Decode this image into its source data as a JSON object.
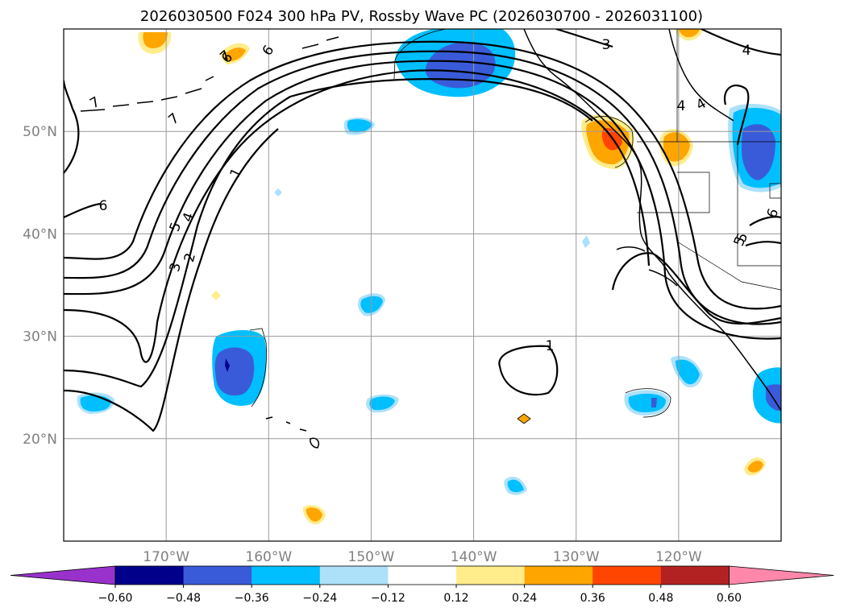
{
  "chart_data": {
    "type": "contour-map",
    "title": "2026030500 F024 300 hPa PV, Rossby Wave PC (2026030700 - 2026031100)",
    "map_extent": {
      "lon_min": -180,
      "lon_max": -110,
      "lat_min": 10,
      "lat_max": 60
    },
    "lat_ticks": [
      {
        "value": 50,
        "label": "50°N"
      },
      {
        "value": 40,
        "label": "40°N"
      },
      {
        "value": 30,
        "label": "30°N"
      },
      {
        "value": 20,
        "label": "20°N"
      }
    ],
    "lon_ticks": [
      {
        "value": -170,
        "label": "170°W"
      },
      {
        "value": -160,
        "label": "160°W"
      },
      {
        "value": -150,
        "label": "150°W"
      },
      {
        "value": -140,
        "label": "140°W"
      },
      {
        "value": -130,
        "label": "130°W"
      },
      {
        "value": -120,
        "label": "120°W"
      }
    ],
    "gridlines": true,
    "colorbar": {
      "levels": [
        -0.6,
        -0.48,
        -0.36,
        -0.24,
        -0.12,
        0.12,
        0.24,
        0.36,
        0.48,
        0.6
      ],
      "tick_labels": [
        "−0.60",
        "−0.48",
        "−0.36",
        "−0.24",
        "−0.12",
        "0.12",
        "0.24",
        "0.36",
        "0.48",
        "0.60"
      ],
      "colors": [
        "#9932CC",
        "#00008B",
        "#3A5BD9",
        "#00BFFF",
        "#ADE1FA",
        "#FFFFFF",
        "#FFEC8B",
        "#FFA500",
        "#FF4500",
        "#B22222",
        "#FF88AA"
      ],
      "extend": "both"
    },
    "pv_contour_labels": [
      "7",
      "7",
      "6",
      "6",
      "5",
      "4",
      "3",
      "2",
      "1",
      "3",
      "4",
      "5",
      "1",
      "6",
      "6",
      "4",
      "5",
      "7",
      "4"
    ],
    "shaded_anomalies": [
      {
        "name": "gulf-of-alaska-negative",
        "lon": -141,
        "lat": 57,
        "value": -0.48
      },
      {
        "name": "subtropical-negative-west",
        "lon": -164,
        "lat": 27,
        "value": -0.48
      },
      {
        "name": "pacific-northwest-positive",
        "lon": -127,
        "lat": 49,
        "value": 0.36
      },
      {
        "name": "northern-rockies-positive",
        "lon": -120,
        "lat": 48,
        "value": 0.24
      },
      {
        "name": "montana-negative",
        "lon": -113,
        "lat": 48.5,
        "value": -0.36
      },
      {
        "name": "mexico-negative",
        "lon": -111,
        "lat": 24,
        "value": -0.36
      },
      {
        "name": "hawaii-east-negative",
        "lon": -125,
        "lat": 23.5,
        "value": -0.36
      },
      {
        "name": "baja-offshore-negative",
        "lon": -119.5,
        "lat": 25.5,
        "value": -0.24
      },
      {
        "name": "kamchatka-positive",
        "lon": -172,
        "lat": 59,
        "value": 0.24
      },
      {
        "name": "western-dateline-negative",
        "lon": -176,
        "lat": 23.5,
        "value": -0.24
      },
      {
        "name": "midpac-negative-north",
        "lon": -150,
        "lat": 50.5,
        "value": -0.24
      },
      {
        "name": "midpac-negative-center",
        "lon": -150,
        "lat": 33,
        "value": -0.24
      },
      {
        "name": "midpac-negative-south",
        "lon": -149,
        "lat": 23.5,
        "value": -0.24
      },
      {
        "name": "small-negative-east",
        "lon": -136,
        "lat": 15.5,
        "value": -0.24
      },
      {
        "name": "small-positive-south",
        "lon": -155,
        "lat": 13,
        "value": 0.36
      },
      {
        "name": "small-positive-mexico",
        "lon": -112,
        "lat": 17.5,
        "value": 0.24
      },
      {
        "name": "tiny-positive-center",
        "lon": -135,
        "lat": 22,
        "value": 0.24
      }
    ]
  }
}
